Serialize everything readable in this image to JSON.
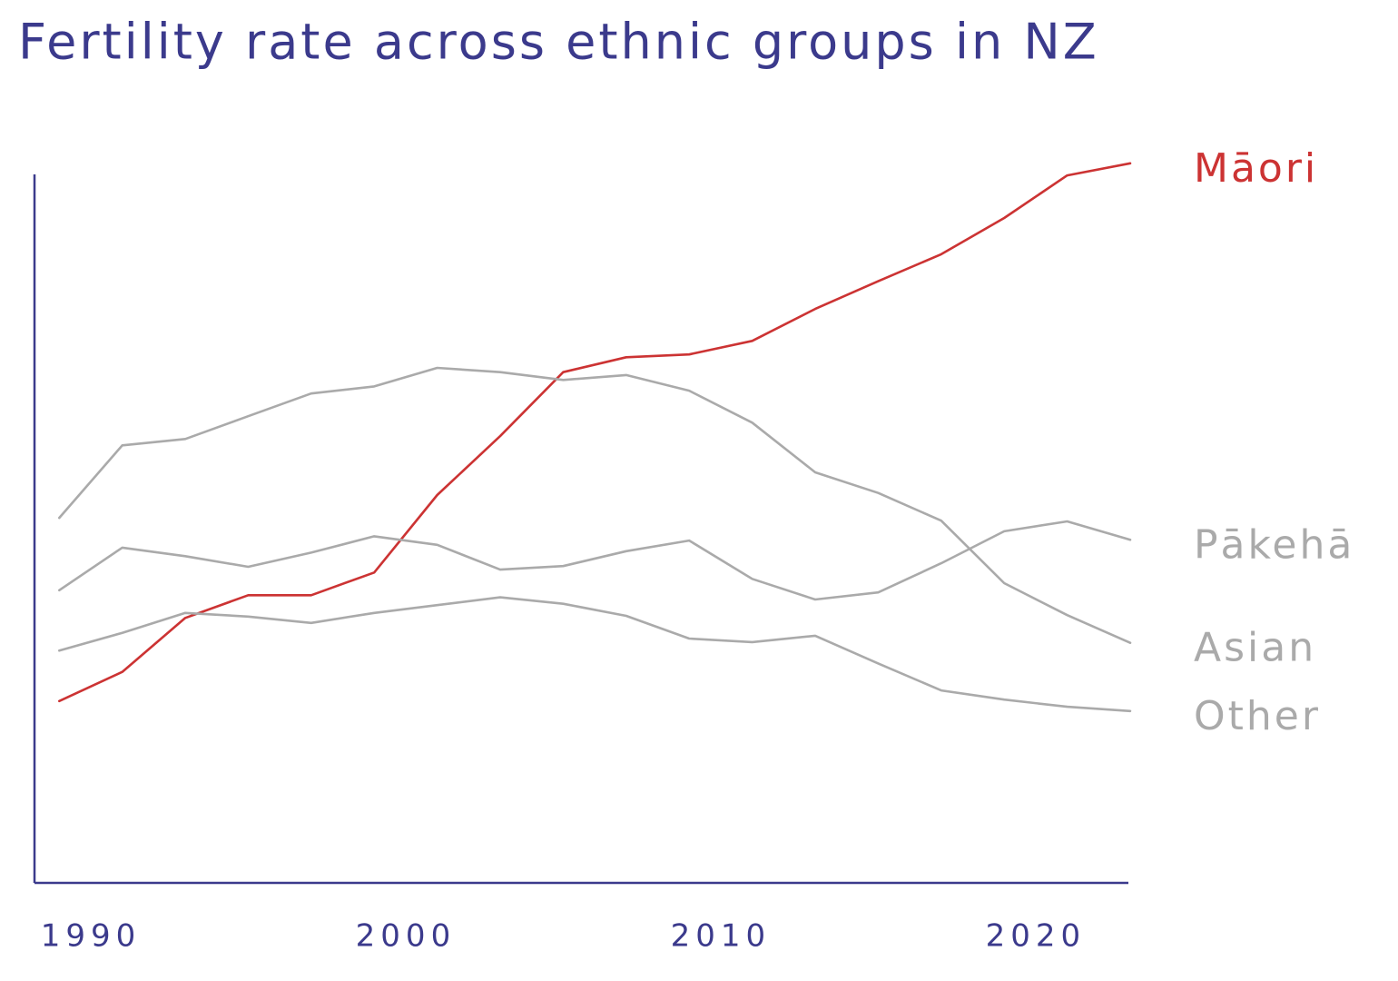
{
  "chart_data": {
    "type": "line",
    "title": "Fertility rate across ethnic groups in NZ",
    "x": [
      1989,
      1991,
      1993,
      1995,
      1997,
      1999,
      2001,
      2003,
      2005,
      2007,
      2009,
      2011,
      2013,
      2015,
      2017,
      2019,
      2021,
      2023
    ],
    "xlim": [
      1988.2,
      2023
    ],
    "xticks": [
      1990,
      2000,
      2010,
      2020
    ],
    "ylim": [
      0,
      105
    ],
    "grid": false,
    "series": [
      {
        "name": "Māori",
        "color": "#cc3333",
        "values": [
          25.6,
          29.7,
          37.3,
          40.5,
          40.5,
          43.7,
          54.6,
          62.9,
          71.9,
          74.0,
          74.4,
          76.3,
          80.8,
          84.7,
          88.5,
          93.6,
          99.6,
          101.3
        ]
      },
      {
        "name": "Pākehā",
        "color": "#aaaaaa",
        "values": [
          41.2,
          47.2,
          46.0,
          44.5,
          46.5,
          48.8,
          47.6,
          44.1,
          44.6,
          46.7,
          48.2,
          42.8,
          39.9,
          40.9,
          45.0,
          49.5,
          50.9,
          48.3
        ]
      },
      {
        "name": "Asian",
        "color": "#aaaaaa",
        "values": [
          51.4,
          61.6,
          62.5,
          65.7,
          68.9,
          69.9,
          72.5,
          71.9,
          70.8,
          71.5,
          69.3,
          64.8,
          57.8,
          54.9,
          51.0,
          42.2,
          37.7,
          33.8
        ]
      },
      {
        "name": "Other",
        "color": "#aaaaaa",
        "values": [
          32.7,
          35.2,
          38.0,
          37.5,
          36.6,
          38.0,
          39.1,
          40.2,
          39.3,
          37.6,
          34.4,
          33.9,
          34.8,
          30.9,
          27.1,
          25.8,
          24.8,
          24.2
        ]
      }
    ]
  }
}
